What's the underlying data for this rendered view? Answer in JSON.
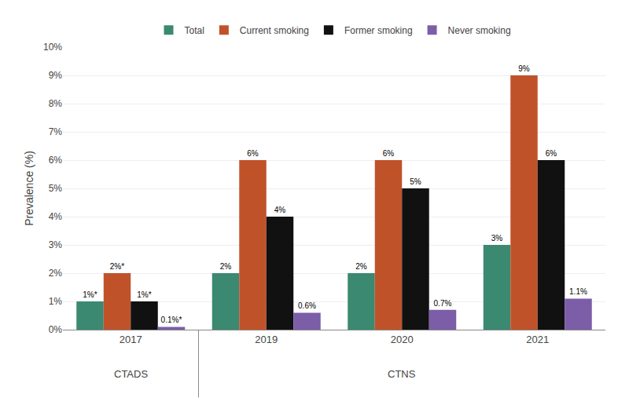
{
  "chart_data": {
    "type": "bar",
    "categories": [
      "2017",
      "2019",
      "2020",
      "2021"
    ],
    "series": [
      {
        "name": "Total",
        "color": "#3b8970",
        "values": [
          1,
          2,
          2,
          3
        ],
        "value_labels": [
          "1%*",
          "2%",
          "2%",
          "3%"
        ]
      },
      {
        "name": "Current smoking",
        "color": "#c0522a",
        "values": [
          2,
          6,
          6,
          9
        ],
        "value_labels": [
          "2%*",
          "6%",
          "6%",
          "9%"
        ]
      },
      {
        "name": "Former smoking",
        "color": "#111111",
        "values": [
          1,
          4,
          5,
          6
        ],
        "value_labels": [
          "1%*",
          "4%",
          "5%",
          "6%"
        ]
      },
      {
        "name": "Never smoking",
        "color": "#7b5ea7",
        "values": [
          0.1,
          0.6,
          0.7,
          1.1
        ],
        "value_labels": [
          "0.1%*",
          "0.6%",
          "0.7%",
          "1.1%"
        ]
      }
    ],
    "ylabel": "Prevalence (%)",
    "ylim": [
      0,
      10
    ],
    "yticks": [
      {
        "value": 0,
        "label": "0%"
      },
      {
        "value": 1,
        "label": "1%"
      },
      {
        "value": 2,
        "label": "2%"
      },
      {
        "value": 3,
        "label": "3%"
      },
      {
        "value": 4,
        "label": "4%"
      },
      {
        "value": 5,
        "label": "5%"
      },
      {
        "value": 6,
        "label": "6%"
      },
      {
        "value": 7,
        "label": "7%"
      },
      {
        "value": 8,
        "label": "8%"
      },
      {
        "value": 9,
        "label": "9%"
      },
      {
        "value": 10,
        "label": "10%"
      }
    ],
    "grid": true,
    "legend": "top",
    "data_labels": true,
    "annotations": [
      {
        "text": "CTADS",
        "categories": [
          "2017"
        ]
      },
      {
        "text": "CTNS",
        "categories": [
          "2019",
          "2020",
          "2021"
        ]
      }
    ]
  }
}
